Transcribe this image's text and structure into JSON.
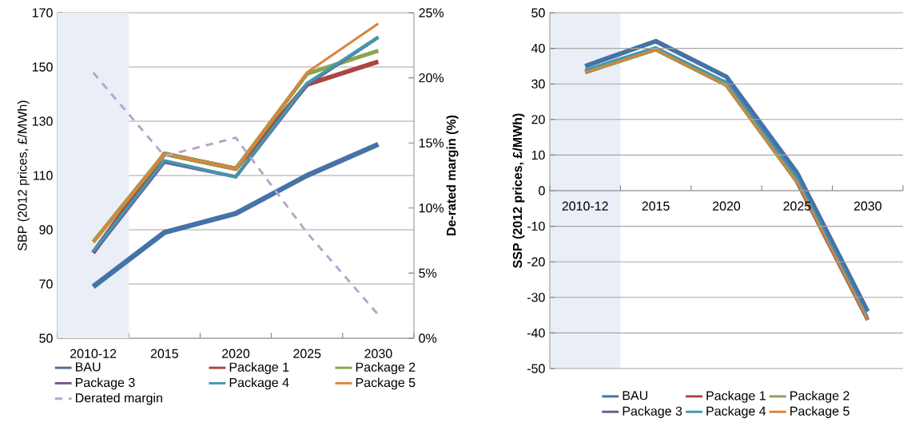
{
  "chart_data": [
    {
      "type": "line",
      "categories": [
        "2010-12",
        "2015",
        "2020",
        "2025",
        "2030"
      ],
      "ylabel": "SBP (2012 prices, £/MWh)",
      "y2label": "De-rated margin (%)",
      "ylim": [
        50,
        170
      ],
      "yticks": [
        50,
        70,
        90,
        110,
        130,
        150,
        170
      ],
      "y2lim": [
        0,
        25
      ],
      "y2ticks": [
        {
          "value": 0,
          "label": "0%"
        },
        {
          "value": 5,
          "label": "5%"
        },
        {
          "value": 10,
          "label": "10%"
        },
        {
          "value": 15,
          "label": "15%"
        },
        {
          "value": 20,
          "label": "20%"
        },
        {
          "value": 25,
          "label": "25%"
        }
      ],
      "grid": "y",
      "legend": "bottom",
      "line_style": "solid",
      "bands": [
        {
          "axis": "x",
          "from": "2010-12",
          "to": "2010-12",
          "color": "#e9eef7"
        }
      ],
      "series": [
        {
          "name": "BAU",
          "color": "#4572a7",
          "values": [
            69,
            89,
            96,
            110,
            121.5
          ]
        },
        {
          "name": "Package 1",
          "color": "#aa4643",
          "values": [
            81.5,
            118,
            112.5,
            143.5,
            152
          ]
        },
        {
          "name": "Package 2",
          "color": "#89a54e",
          "values": [
            85.5,
            118,
            112.5,
            147.5,
            156
          ]
        },
        {
          "name": "Package 3",
          "color": "#71588f",
          "values": [
            81.5,
            115,
            109.5,
            143.5,
            161
          ]
        },
        {
          "name": "Package 4",
          "color": "#4198af",
          "values": [
            82,
            115.5,
            109.5,
            144,
            161
          ]
        },
        {
          "name": "Package 5",
          "color": "#db843d",
          "values": [
            85.5,
            118,
            112.5,
            148,
            166
          ]
        },
        {
          "name": "Derated margin",
          "color": "#b3a7cc",
          "axis": "y2",
          "line_style": "dashed",
          "values": [
            20.4,
            14.0,
            15.4,
            8.1,
            1.8
          ]
        }
      ]
    },
    {
      "type": "line",
      "categories": [
        "2010-12",
        "2015",
        "2020",
        "2025",
        "2030"
      ],
      "ylabel": "SSP (2012 prices, £/MWh)",
      "ylim": [
        -50,
        50
      ],
      "yticks": [
        -50,
        -40,
        -30,
        -20,
        -10,
        0,
        10,
        20,
        30,
        40,
        50
      ],
      "grid": "y",
      "legend": "bottom",
      "line_style": "solid",
      "bands": [
        {
          "axis": "x",
          "from": "2010-12",
          "to": "2010-12",
          "color": "#e9eef7"
        }
      ],
      "series": [
        {
          "name": "BAU",
          "color": "#4572a7",
          "values": [
            35,
            42,
            32,
            5,
            -34
          ]
        },
        {
          "name": "Package 1",
          "color": "#aa4643",
          "values": [
            33.3,
            39.7,
            29.7,
            2.5,
            -36.3
          ]
        },
        {
          "name": "Package 2",
          "color": "#89a54e",
          "values": [
            33.3,
            39.7,
            29.7,
            2.5,
            -36.3
          ]
        },
        {
          "name": "Package 3",
          "color": "#71588f",
          "values": [
            null,
            null,
            null,
            2.5,
            -36.3
          ]
        },
        {
          "name": "Package 4",
          "color": "#4198af",
          "values": [
            34,
            40.3,
            30.5,
            3.5,
            -35.5
          ]
        },
        {
          "name": "Package 5",
          "color": "#db843d",
          "values": [
            33.3,
            39.7,
            29.7,
            2.5,
            -36.3
          ]
        }
      ]
    }
  ]
}
